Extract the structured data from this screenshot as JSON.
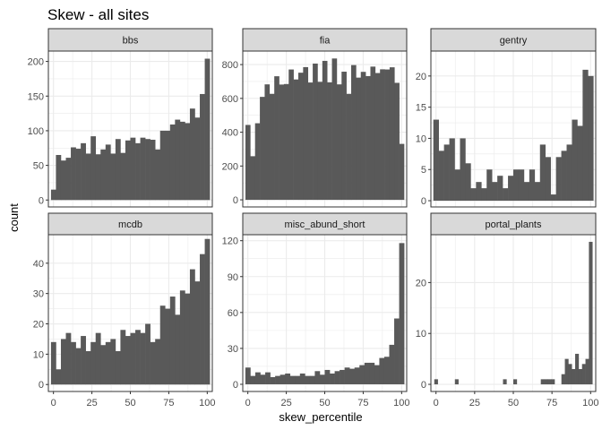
{
  "chart_data": {
    "type": "bar",
    "title": "Skew - all sites",
    "xlabel": "skew_percentile",
    "ylabel": "count",
    "grid": true,
    "bar_color": "#595959",
    "strip_color": "#d9d9d9",
    "panel_border_color": "#333333",
    "grid_color": "#ebebeb",
    "x_range": [
      -3.3,
      103.3
    ],
    "x_ticks": [
      0,
      25,
      50,
      75,
      100
    ],
    "bin_width": 3.333,
    "panels": [
      {
        "name": "bbs",
        "ylim": [
          -10,
          215
        ],
        "y_ticks": [
          0,
          50,
          100,
          150,
          200
        ],
        "values": [
          15,
          65,
          57,
          61,
          76,
          74,
          82,
          67,
          92,
          66,
          73,
          80,
          67,
          88,
          68,
          86,
          90,
          82,
          90,
          88,
          87,
          73,
          100,
          100,
          109,
          116,
          113,
          111,
          132,
          119,
          153,
          204
        ]
      },
      {
        "name": "fia",
        "ylim": [
          -42,
          880
        ],
        "y_ticks": [
          0,
          200,
          400,
          600,
          800
        ],
        "values": [
          443,
          258,
          453,
          609,
          683,
          627,
          731,
          682,
          685,
          771,
          712,
          752,
          785,
          694,
          806,
          698,
          822,
          695,
          836,
          683,
          758,
          627,
          797,
          723,
          757,
          732,
          788,
          750,
          772,
          771,
          784,
          692,
          331
        ]
      },
      {
        "name": "gentry",
        "ylim": [
          -1,
          24
        ],
        "y_ticks": [
          0,
          5,
          10,
          15,
          20
        ],
        "values": [
          13,
          8,
          9,
          10,
          5,
          10,
          6,
          2,
          3,
          2,
          5,
          3,
          4,
          2,
          4,
          5,
          5,
          3,
          5,
          3,
          9,
          7,
          1,
          7,
          8,
          9,
          13,
          12,
          21,
          20
        ]
      },
      {
        "name": "mcdb",
        "ylim": [
          -2.3,
          49.4
        ],
        "y_ticks": [
          0,
          10,
          20,
          30,
          40
        ],
        "values": [
          14,
          5,
          15,
          17,
          14,
          12,
          16,
          11,
          14,
          17,
          13,
          14,
          15,
          11,
          18,
          16,
          17,
          18,
          17,
          20,
          14,
          15,
          26,
          25,
          29,
          23,
          31,
          30,
          38,
          34,
          43,
          48
        ]
      },
      {
        "name": "misc_abund_short",
        "ylim": [
          -6,
          125
        ],
        "y_ticks": [
          0,
          30,
          60,
          90,
          120
        ],
        "values": [
          14,
          7,
          10,
          8,
          10,
          6,
          7,
          8,
          9,
          7,
          7,
          9,
          7,
          7,
          11,
          8,
          12,
          9,
          11,
          12,
          14,
          13,
          14,
          16,
          18,
          18,
          16,
          22,
          23,
          33,
          55,
          118
        ]
      },
      {
        "name": "portal_plants",
        "ylim": [
          -1.4,
          29.4
        ],
        "y_ticks": [
          0,
          10,
          20
        ],
        "values": [
          1,
          0,
          0,
          0,
          0,
          0,
          1,
          0,
          0,
          0,
          0,
          0,
          0,
          0,
          0,
          0,
          0,
          0,
          0,
          0,
          1,
          0,
          0,
          1,
          0,
          0,
          0,
          0,
          0,
          0,
          0,
          1,
          1,
          1,
          1,
          0,
          0,
          2,
          5,
          4,
          3,
          6,
          3,
          4,
          5,
          28
        ]
      }
    ]
  }
}
